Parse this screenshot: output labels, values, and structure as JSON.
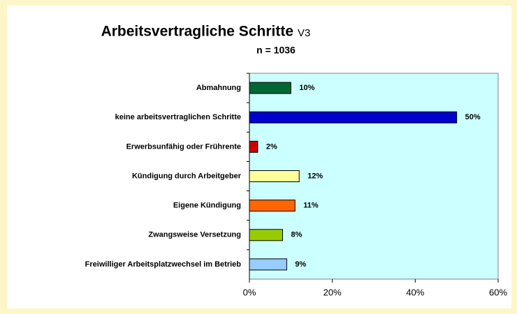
{
  "chart_data": {
    "type": "barh",
    "title": "Arbeitsvertragliche Schritte",
    "title_suffix": "V3",
    "subtitle": "n = 1036",
    "categories": [
      "Abmahnung",
      "keine arbeitsvertraglichen Schritte",
      "Erwerbsunfähig oder Frührente",
      "Kündigung durch Arbeitgeber",
      "Eigene Kündigung",
      "Zwangsweise Versetzung",
      "Freiwilliger Arbeitsplatzwechsel im Betrieb"
    ],
    "values": [
      10,
      50,
      2,
      12,
      11,
      8,
      9
    ],
    "value_labels": [
      "10%",
      "50%",
      "2%",
      "12%",
      "11%",
      "8%",
      "9%"
    ],
    "colors": [
      "#006633",
      "#0000cc",
      "#cc0000",
      "#ffff99",
      "#ff6600",
      "#99cc00",
      "#99ccff"
    ],
    "xlim": [
      0,
      60
    ],
    "xticks": [
      {
        "value": 0,
        "label": "0%"
      },
      {
        "value": 20,
        "label": "20%"
      },
      {
        "value": 40,
        "label": "40%"
      },
      {
        "value": 60,
        "label": "60%"
      }
    ]
  }
}
